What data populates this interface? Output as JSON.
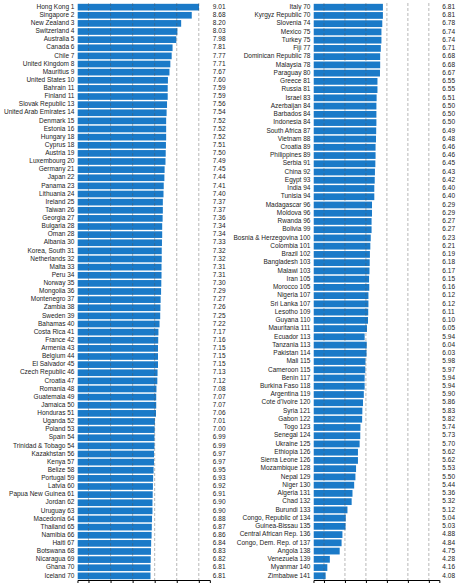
{
  "chart_data": [
    {
      "type": "bar",
      "orientation": "horizontal",
      "categories": [
        "Hong Kong 1",
        "Singapore 2",
        "New Zealand 3",
        "Switzerland 4",
        "Australia 5",
        "Canada 6",
        "Chile 7",
        "United Kingdom 8",
        "Mauritius 9",
        "United States 10",
        "Bahrain 11",
        "Finland 11",
        "Slovak Republic 13",
        "United Arab Emirates 14",
        "Denmark 15",
        "Estonia 16",
        "Hungary 18",
        "Cyprus 18",
        "Austria 19",
        "Luxembourg 20",
        "Germany 21",
        "Japan 22",
        "Panama 23",
        "Lithuania 24",
        "Ireland 25",
        "Taiwan 26",
        "Georgia 27",
        "Bulgaria 28",
        "Oman 28",
        "Albania 30",
        "Korea, South 31",
        "Netherlands 32",
        "Malta 33",
        "Peru 34",
        "Norway 35",
        "Mongolia 36",
        "Montenegro 37",
        "Zambia 38",
        "Sweden 39",
        "Bahamas 40",
        "Costa Rica 41",
        "France 42",
        "Armenia 43",
        "Belgium 44",
        "El Salvador 45",
        "Czech Republic 46",
        "Croatia 47",
        "Romania 48",
        "Guatemala 49",
        "Jamaica 50",
        "Honduras 51",
        "Uganda 52",
        "Poland 53",
        "Spain 54",
        "Trinidad & Tobago 54",
        "Kazakhstan 56",
        "Kenya 57",
        "Belize 58",
        "Portugal 59",
        "Latvia 60",
        "Papua New Guinea 61",
        "Jordan 62",
        "Uruguay 63",
        "Macedonia 64",
        "Thailand 65",
        "Namibia 66",
        "Haiti 67",
        "Botswana 68",
        "Nicaragua 69",
        "Ghana 70",
        "Iceland 70"
      ],
      "values": [
        9.01,
        8.68,
        8.2,
        8.03,
        7.98,
        7.81,
        7.77,
        7.71,
        7.67,
        7.6,
        7.59,
        7.59,
        7.56,
        7.54,
        7.52,
        7.52,
        7.52,
        7.51,
        7.5,
        7.49,
        7.45,
        7.44,
        7.41,
        7.4,
        7.37,
        7.37,
        7.36,
        7.34,
        7.34,
        7.33,
        7.32,
        7.32,
        7.31,
        7.31,
        7.3,
        7.29,
        7.27,
        7.26,
        7.25,
        7.22,
        7.17,
        7.16,
        7.15,
        7.15,
        7.15,
        7.13,
        7.12,
        7.08,
        7.07,
        7.07,
        7.06,
        7.01,
        7.0,
        6.99,
        6.99,
        6.97,
        6.97,
        6.95,
        6.93,
        6.92,
        6.91,
        6.9,
        6.9,
        6.88,
        6.87,
        6.86,
        6.84,
        6.83,
        6.82,
        6.81,
        6.81
      ],
      "value_labels": [
        "9.01",
        "8.68",
        "8.20",
        "8.03",
        "7.98",
        "7.81",
        "7.77",
        "7.71",
        "7.67",
        "7.60",
        "7.59",
        "7.59",
        "7.56",
        "7.54",
        "7.52",
        "7.52",
        "7.52",
        "7.51",
        "7.50",
        "7.49",
        "7.45",
        "7.44",
        "7.41",
        "7.40",
        "7.37",
        "7.37",
        "7.36",
        "7.34",
        "7.34",
        "7.33",
        "7.32",
        "7.32",
        "7.31",
        "7.31",
        "7.30",
        "7.29",
        "7.27",
        "7.26",
        "7.25",
        "7.22",
        "7.17",
        "7.16",
        "7.15",
        "7.15",
        "7.15",
        "7.13",
        "7.12",
        "7.08",
        "7.07",
        "7.07",
        "7.06",
        "7.01",
        "7.00",
        "6.99",
        "6.99",
        "6.97",
        "6.97",
        "6.95",
        "6.93",
        "6.92",
        "6.91",
        "6.90",
        "6.90",
        "6.88",
        "6.87",
        "6.86",
        "6.84",
        "6.83",
        "6.82",
        "6.81",
        "6.81"
      ],
      "color": "#1a7ac8",
      "xlim": [
        3.5,
        9.5
      ],
      "xticks": [
        4,
        5,
        6,
        7,
        8,
        9
      ],
      "grid": true,
      "tick_labels": false,
      "data_labels": true
    },
    {
      "type": "bar",
      "orientation": "horizontal",
      "categories": [
        "Italy 70",
        "Kyrgyz Republic 70",
        "Slovenia 74",
        "Mexico 75",
        "Turkey 75",
        "Fiji 77",
        "Dominican Republic 78",
        "Malaysia 78",
        "Paraguay 80",
        "Greece 81",
        "Russia 81",
        "Israel 83",
        "Azerbaijan 84",
        "Barbados 84",
        "Indonesia 84",
        "South Africa 87",
        "Vietnam 88",
        "Croatia 89",
        "Philippines 89",
        "Serbia 91",
        "China 92",
        "Egypt 93",
        "India 94",
        "Tunisia 94",
        "Madagascar 96",
        "Moldova 96",
        "Rwanda 96",
        "Bolivia 99",
        "Bosnia & Herzegovina 100",
        "Colombia 101",
        "Brazil 102",
        "Bangladesh 103",
        "Malawi 103",
        "Iran 105",
        "Morocco 105",
        "Nigeria 107",
        "Sri Lanka 107",
        "Lesotho 109",
        "Guyana 110",
        "Mauritania 111",
        "Ecuador 113",
        "Tanzania 113",
        "Pakistan 114",
        "Mali 115",
        "Cameroon 115",
        "Benin 117",
        "Burkina Faso 118",
        "Argentina 119",
        "Cote d'Ivoire 120",
        "Syria 121",
        "Gabon 122",
        "Togo 123",
        "Senegal 124",
        "Ukraine 125",
        "Ethiopia 126",
        "Sierra Leone 126",
        "Mozambique 128",
        "Nepal 129",
        "Niger 130",
        "Algeria 131",
        "Chad 132",
        "Burundi 133",
        "Congo, Republic of 134",
        "Guinea-Bissau 135",
        "Central African Rep. 136",
        "Congo, Dem. Rep. of 137",
        "Angola 138",
        "Venezuela 139",
        "Myanmar 140",
        "Zimbabwe 141"
      ],
      "values": [
        6.81,
        6.81,
        6.78,
        6.74,
        6.74,
        6.71,
        6.68,
        6.68,
        6.67,
        6.55,
        6.55,
        6.51,
        6.5,
        6.5,
        6.5,
        6.49,
        6.48,
        6.46,
        6.46,
        6.45,
        6.43,
        6.42,
        6.4,
        6.4,
        6.29,
        6.29,
        6.27,
        6.27,
        6.23,
        6.21,
        6.19,
        6.18,
        6.17,
        6.15,
        6.16,
        6.12,
        6.12,
        6.11,
        6.1,
        6.05,
        5.94,
        6.04,
        6.03,
        5.98,
        5.97,
        5.94,
        5.94,
        5.9,
        5.86,
        5.83,
        5.82,
        5.74,
        5.73,
        5.7,
        5.62,
        5.62,
        5.53,
        5.5,
        5.44,
        5.36,
        5.32,
        5.12,
        5.04,
        5.03,
        4.88,
        4.84,
        4.75,
        4.28,
        4.16,
        4.08
      ],
      "value_labels": [
        "6.81",
        "6.81",
        "6.78",
        "6.74",
        "6.74",
        "6.71",
        "6.68",
        "6.68",
        "6.67",
        "6.55",
        "6.55",
        "6.51",
        "6.50",
        "6.50",
        "6.50",
        "6.49",
        "6.48",
        "6.46",
        "6.46",
        "6.45",
        "6.43",
        "6.42",
        "6.40",
        "6.40",
        "6.29",
        "6.29",
        "6.27",
        "6.27",
        "6.23",
        "6.21",
        "6.19",
        "6.18",
        "6.17",
        "6.15",
        "6.16",
        "6.12",
        "6.12",
        "6.11",
        "6.10",
        "6.05",
        "5.94",
        "6.04",
        "6.03",
        "5.98",
        "5.97",
        "5.94",
        "5.94",
        "5.90",
        "5.86",
        "5.83",
        "5.82",
        "5.74",
        "5.73",
        "5.70",
        "5.62",
        "5.62",
        "5.53",
        "5.50",
        "5.44",
        "5.36",
        "5.32",
        "5.12",
        "5.04",
        "5.03",
        "4.88",
        "4.84",
        "4.75",
        "4.28",
        "4.16",
        "4.08"
      ],
      "color": "#1a7ac8",
      "xlim": [
        3.5,
        9.5
      ],
      "xticks": [
        4,
        5,
        6,
        7,
        8,
        9
      ],
      "grid": true,
      "tick_labels": false,
      "data_labels": true
    }
  ]
}
